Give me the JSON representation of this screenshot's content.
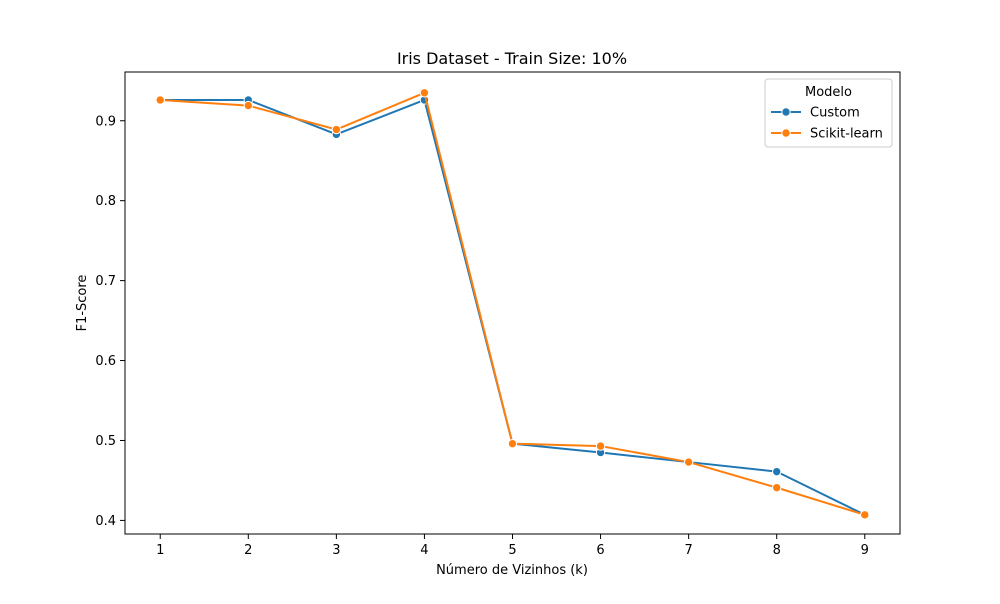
{
  "chart_data": {
    "type": "line",
    "title": "Iris Dataset - Train Size: 10%",
    "xlabel": "Número de Vizinhos (k)",
    "ylabel": "F1-Score",
    "x": [
      1,
      2,
      3,
      4,
      5,
      6,
      7,
      8,
      9
    ],
    "xticks": [
      "1",
      "2",
      "3",
      "4",
      "5",
      "6",
      "7",
      "8",
      "9"
    ],
    "yticks": [
      "0.4",
      "0.5",
      "0.6",
      "0.7",
      "0.8",
      "0.9"
    ],
    "xlim": [
      0.6,
      9.4
    ],
    "ylim": [
      0.383,
      0.961
    ],
    "grid": false,
    "legend": {
      "title": "Modelo",
      "placement": "top-right"
    },
    "series": [
      {
        "name": "Custom",
        "color": "#1f77b4",
        "values": [
          0.926,
          0.926,
          0.883,
          0.926,
          0.496,
          0.485,
          0.473,
          0.461,
          0.407
        ]
      },
      {
        "name": "Scikit-learn",
        "color": "#ff7f0e",
        "values": [
          0.926,
          0.919,
          0.889,
          0.935,
          0.496,
          0.493,
          0.473,
          0.441,
          0.407
        ]
      }
    ]
  }
}
